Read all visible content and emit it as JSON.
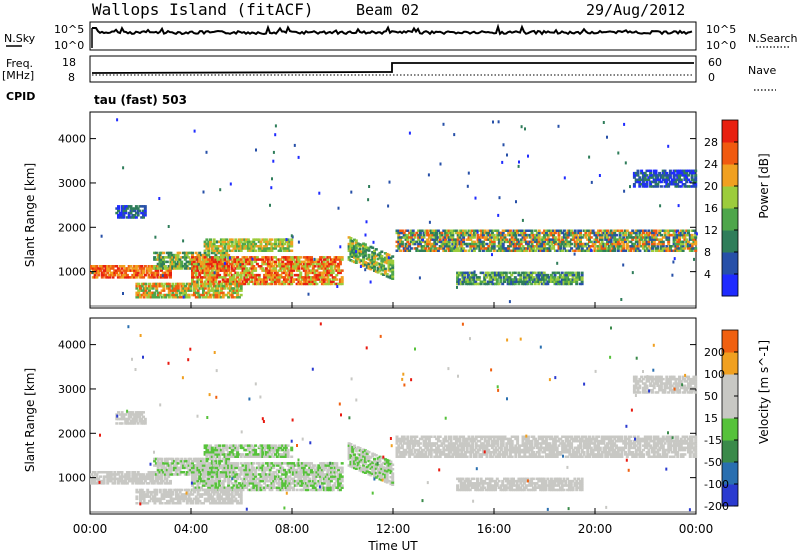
{
  "header": {
    "site": "Wallops Island (fitACF)",
    "beam": "Beam 02",
    "date": "29/Aug/2012"
  },
  "noise_panel": {
    "left_label": "N.Sky",
    "left_ticks": [
      "10^5",
      "10^0"
    ],
    "right_label": "N.Search",
    "right_ticks": [
      "10^5",
      "10^0"
    ]
  },
  "freq_panel": {
    "left_label_1": "Freq.",
    "left_label_2": "[MHz]",
    "left_ticks": [
      "18",
      "8"
    ],
    "right_label": "Nave",
    "right_ticks": [
      "60",
      "0"
    ],
    "cpid_label": "CPID",
    "cpid_value": "tau (fast) 503"
  },
  "colors": {
    "power": [
      "#1f2bff",
      "#2750a8",
      "#2f7d5a",
      "#4ea64a",
      "#9ccc3c",
      "#f0a020",
      "#f05a10",
      "#e82010"
    ],
    "velocity": [
      "#2b3bd0",
      "#2a6fb0",
      "#3a8a4a",
      "#56c23a",
      "#c8c8c4",
      "#c8c8c4",
      "#f0a020",
      "#f06010",
      "#e81a10"
    ]
  },
  "chart_data": [
    {
      "type": "heatmap",
      "title": "",
      "xlabel": "",
      "ylabel": "Slant Range [km]",
      "xlim": [
        0,
        24
      ],
      "ylim": [
        180,
        4600
      ],
      "yticks": [
        "4000",
        "3000",
        "2000",
        "1000"
      ],
      "colorbar": {
        "label": "Power [dB]",
        "ticks": [
          "28",
          "24",
          "20",
          "16",
          "12",
          "8",
          "4"
        ]
      }
    },
    {
      "type": "heatmap",
      "title": "",
      "xlabel": "Time UT",
      "ylabel": "Slant Range [km]",
      "xlim": [
        0,
        24
      ],
      "ylim": [
        180,
        4600
      ],
      "yticks": [
        "4000",
        "3000",
        "2000",
        "1000"
      ],
      "xticks": [
        "00:00",
        "04:00",
        "08:00",
        "12:00",
        "16:00",
        "20:00",
        "00:00"
      ],
      "colorbar": {
        "label": "Velocity [m s^-1]",
        "ticks": [
          "200",
          "100",
          "50",
          "15",
          "-15",
          "-50",
          "-100",
          "-200"
        ]
      }
    }
  ]
}
